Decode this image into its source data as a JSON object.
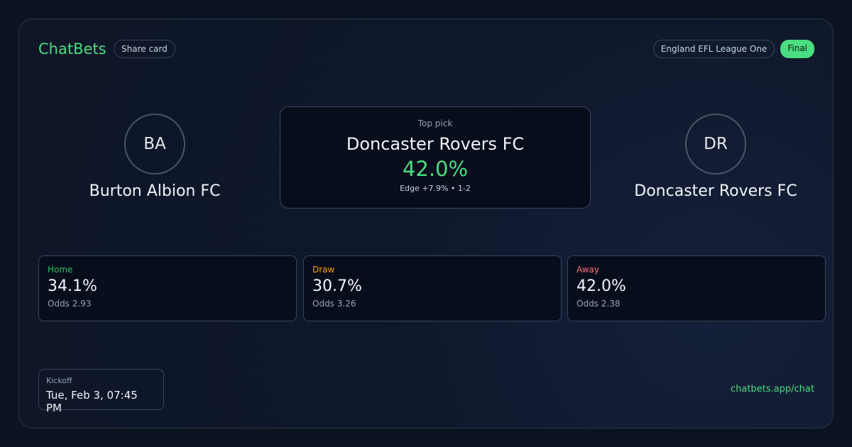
{
  "header": {
    "brand": "ChatBets",
    "share_label": "Share card",
    "league": "England EFL League One",
    "status": "Final"
  },
  "home": {
    "initials": "BA",
    "name": "Burton Albion FC"
  },
  "away": {
    "initials": "DR",
    "name": "Doncaster Rovers FC"
  },
  "top_pick": {
    "label": "Top pick",
    "team": "Doncaster Rovers FC",
    "probability": "42.0%",
    "detail": "Edge +7.9% • 1-2"
  },
  "outcomes": [
    {
      "label": "Home",
      "pct": "34.1%",
      "odds": "Odds 2.93",
      "color": "#22c55e"
    },
    {
      "label": "Draw",
      "pct": "30.7%",
      "odds": "Odds 3.26",
      "color": "#f59e0b"
    },
    {
      "label": "Away",
      "pct": "42.0%",
      "odds": "Odds 2.38",
      "color": "#f87171"
    }
  ],
  "kickoff": {
    "label": "Kickoff",
    "value": "Tue, Feb 3, 07:45 PM"
  },
  "footer": {
    "link": "chatbets.app/chat"
  },
  "colors": {
    "accent": "#4ade80"
  }
}
